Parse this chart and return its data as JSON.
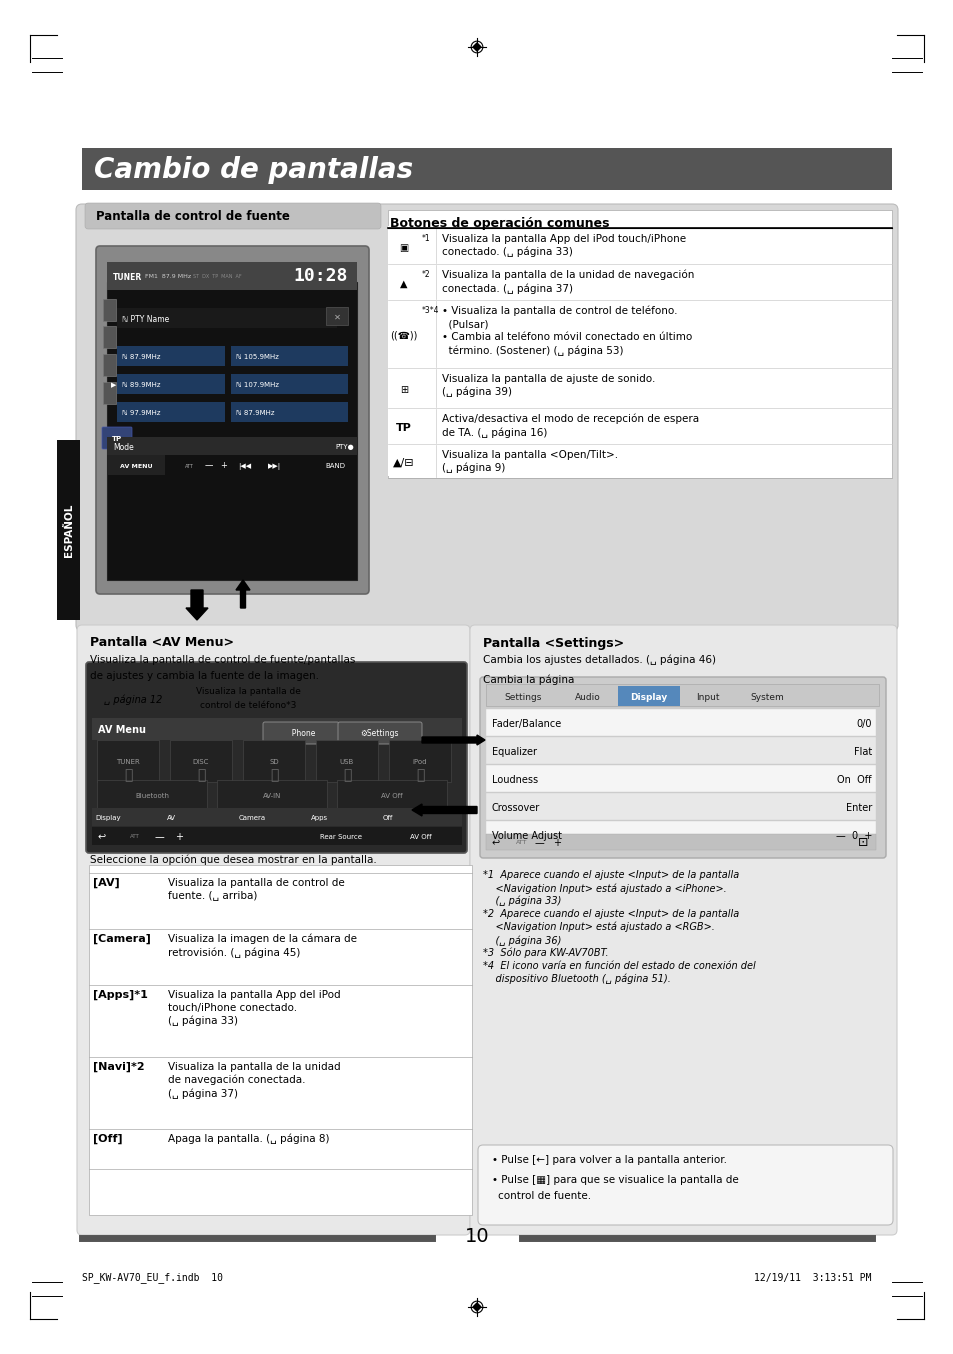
{
  "page_bg": "#ffffff",
  "title_bg": "#555555",
  "title_text": "Cambio de pantallas",
  "title_text_color": "#ffffff",
  "sidebar_text": "ESPAÑOL",
  "sidebar_bg": "#111111",
  "sidebar_text_color": "#ffffff",
  "footer_left": "SP_KW-AV70_EU_f.indb  10",
  "footer_right": "12/19/11  3:13:51 PM",
  "footer_page": "10",
  "footer_bar_color": "#555555",
  "section1_title": "Pantalla de control de fuente",
  "section2_title": "Botones de operación comunes",
  "section3_title": "Pantalla <AV Menu>",
  "section4_title": "Pantalla <Settings>",
  "top_panel_bg": "#d8d8d8",
  "bottom_panel_left_bg": "#e0e0e0",
  "bottom_panel_right_bg": "#e8e8e8",
  "table_rows": [
    [
      "*1",
      "Visualiza la pantalla App del iPod touch/iPhone\nconectado. (␣ página 33)"
    ],
    [
      "*2",
      "Visualiza la pantalla de la unidad de navegación\nconectada. (␣ página 37)"
    ],
    [
      "*3*4",
      "• Visualiza la pantalla de control de teléfono.\n  (Pulsar)\n• Cambia al teléfono móvil conectado en último\n  término. (Sostener) (␣ página 53)"
    ],
    [
      "",
      "Visualiza la pantalla de ajuste de sonido.\n(␣ página 39)"
    ],
    [
      "[TP]",
      "Activa/desactiva el modo de recepción de espera\nde TA. (␣ página 16)"
    ],
    [
      "",
      "Visualiza la pantalla <Open/Tilt>.\n(␣ página 9)"
    ]
  ],
  "small_table_rows": [
    [
      "[AV]",
      "Visualiza la pantalla de control de\nfuente. (␣ arriba)"
    ],
    [
      "[Camera]",
      "Visualiza la imagen de la cámara de\nretrovisión. (␣ página 45)"
    ],
    [
      "[Apps]*1",
      "Visualiza la pantalla App del iPod\ntouch/iPhone conectado.\n(␣ página 33)"
    ],
    [
      "[Navi]*2",
      "Visualiza la pantalla de la unidad\nde navegación conectada.\n(␣ página 37)"
    ],
    [
      "[Off]",
      "Apaga la pantalla. (␣ página 8)"
    ]
  ],
  "footnotes": [
    "*1  Aparece cuando el ajuste <Input> de la pantalla",
    "    <Navigation Input> está ajustado a <iPhone>.",
    "    (␣ página 33)",
    "*2  Aparece cuando el ajuste <Input> de la pantalla",
    "    <Navigation Input> está ajustado a <RGB>.",
    "    (␣ página 36)",
    "*3  Sólo para KW-AV70BT.",
    "*4  El icono varía en función del estado de conexión del",
    "    dispositivo Bluetooth (␣ página 51)."
  ],
  "bullets": [
    "•  Pulse [←] para volver a la pantalla anterior.",
    "•  Pulse [▦] para que se visualice la pantalla de\n   control de fuente."
  ]
}
